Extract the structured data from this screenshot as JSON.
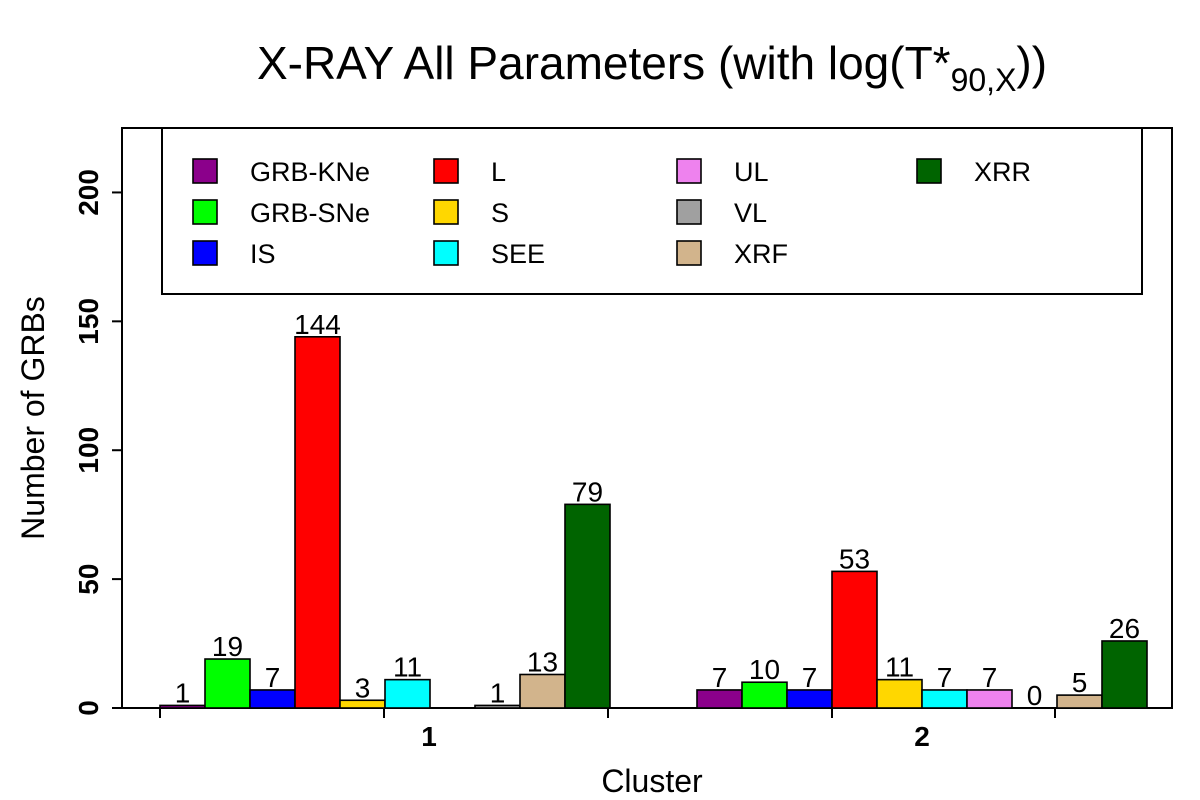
{
  "chart_data": {
    "type": "bar",
    "title": {
      "main": "X-RAY All Parameters (with log(T*",
      "subscript": "90,X",
      "close": "))"
    },
    "xlabel": "Cluster",
    "ylabel": "Number of GRBs",
    "categories": [
      "1",
      "2"
    ],
    "ylim": [
      0,
      225
    ],
    "yticks": [
      "0",
      "50",
      "100",
      "150",
      "200"
    ],
    "grid": false,
    "legend_position": "top",
    "series": [
      {
        "name": "GRB-KNe",
        "color": "#8B008B",
        "values": [
          1,
          7
        ]
      },
      {
        "name": "GRB-SNe",
        "color": "#00FF00",
        "values": [
          19,
          10
        ]
      },
      {
        "name": "IS",
        "color": "#0000FF",
        "values": [
          7,
          7
        ]
      },
      {
        "name": "L",
        "color": "#FF0000",
        "values": [
          144,
          53
        ]
      },
      {
        "name": "S",
        "color": "#FFD700",
        "values": [
          3,
          11
        ]
      },
      {
        "name": "SEE",
        "color": "#00FFFF",
        "values": [
          11,
          7
        ]
      },
      {
        "name": "UL",
        "color": "#EE82EE",
        "values": [
          0,
          7
        ]
      },
      {
        "name": "VL",
        "color": "#A0A0A0",
        "values": [
          1,
          0
        ]
      },
      {
        "name": "XRF",
        "color": "#D2B48C",
        "values": [
          13,
          5
        ]
      },
      {
        "name": "XRR",
        "color": "#006400",
        "values": [
          79,
          26
        ]
      }
    ],
    "data_labels": [
      [
        "1",
        "19",
        "7",
        "144",
        "3",
        "11",
        "",
        "1",
        "13",
        "79"
      ],
      [
        "7",
        "10",
        "7",
        "53",
        "11",
        "7",
        "7",
        "0",
        "5",
        "26"
      ]
    ]
  }
}
